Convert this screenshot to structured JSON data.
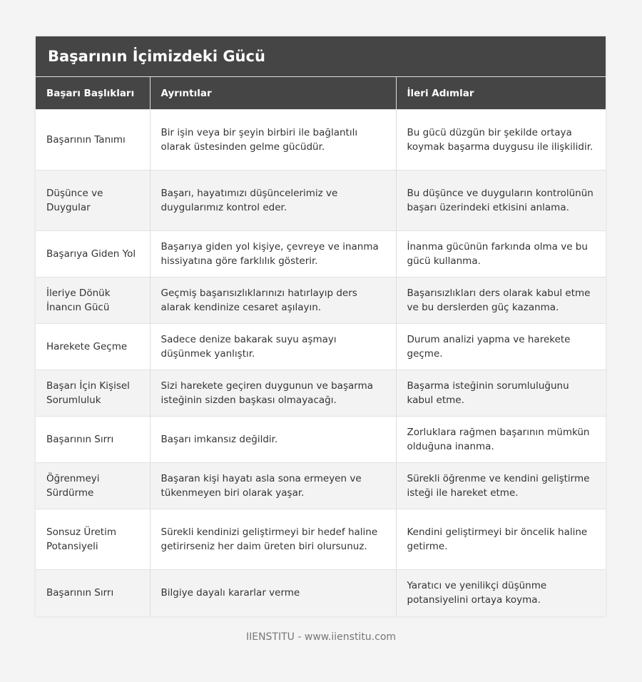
{
  "title": "Başarının İçimizdeki Gücü",
  "headers": [
    "Başarı Başlıkları",
    "Ayrıntılar",
    "İleri Adımlar"
  ],
  "rows": [
    [
      "Başarının Tanımı",
      "Bir işin veya bir şeyin birbiri ile bağlantılı olarak üstesinden gelme gücüdür.",
      "Bu gücü düzgün bir şekilde ortaya koymak başarma duygusu ile ilişkilidir."
    ],
    [
      "Düşünce ve Duygular",
      "Başarı, hayatımızı düşüncelerimiz ve duygularımız kontrol eder.",
      "Bu düşünce ve duyguların kontrolünün başarı üzerindeki etkisini anlama."
    ],
    [
      "Başarıya Giden Yol",
      "Başarıya giden yol kişiye, çevreye ve inanma hissiyatına göre farklılık gösterir.",
      "İnanma gücünün farkında olma ve bu gücü kullanma."
    ],
    [
      "İleriye Dönük İnancın Gücü",
      "Geçmiş başarısızlıklarınızı hatırlayıp ders alarak kendinize cesaret aşılayın.",
      "Başarısızlıkları ders olarak kabul etme ve bu derslerden güç kazanma."
    ],
    [
      "Harekete Geçme",
      "Sadece denize bakarak suyu aşmayı düşünmek yanlıştır.",
      "Durum analizi yapma ve harekete geçme."
    ],
    [
      "Başarı İçin Kişisel Sorumluluk",
      "Sizi harekete geçiren duygunun ve başarma isteğinin sizden başkası olmayacağı.",
      "Başarma isteğinin sorumluluğunu kabul etme."
    ],
    [
      "Başarının Sırrı",
      "Başarı imkansız değildir.",
      "Zorluklara rağmen başarının mümkün olduğuna inanma."
    ],
    [
      "Öğrenmeyi Sürdürme",
      "Başaran kişi hayatı asla sona ermeyen ve tükenmeyen biri olarak yaşar.",
      "Sürekli öğrenme ve kendini geliştirme isteği ile hareket etme."
    ],
    [
      "Sonsuz Üretim Potansiyeli",
      "Sürekli kendinizi geliştirmeyi bir hedef haline getirirseniz her daim üreten biri olursunuz.",
      "Kendini geliştirmeyi bir öncelik haline getirme."
    ],
    [
      "Başarının Sırrı",
      "Bilgiye dayalı kararlar verme",
      "Yaratıcı ve yenilikçi düşünme potansiyelini ortaya koyma."
    ]
  ],
  "footer": "IIENSTITU - www.iienstitu.com"
}
